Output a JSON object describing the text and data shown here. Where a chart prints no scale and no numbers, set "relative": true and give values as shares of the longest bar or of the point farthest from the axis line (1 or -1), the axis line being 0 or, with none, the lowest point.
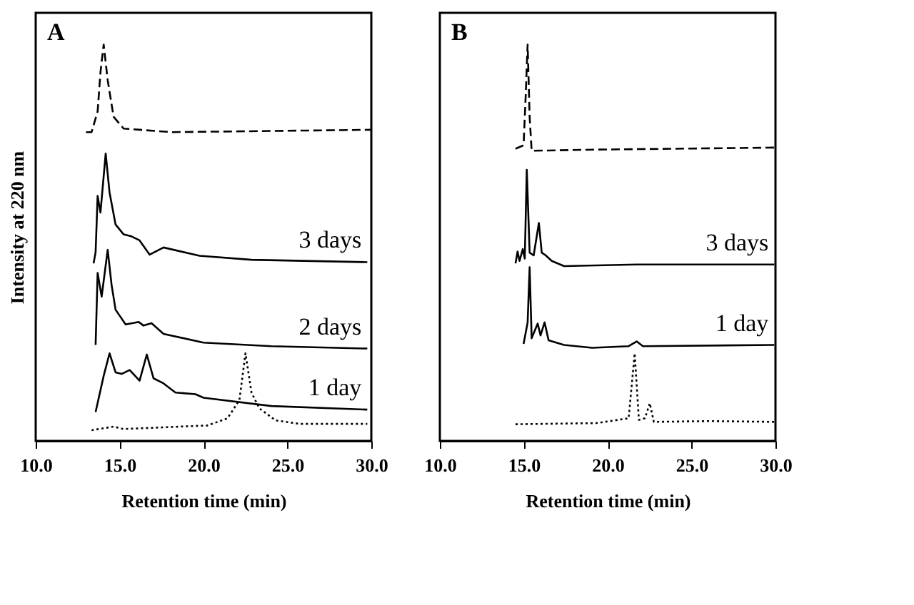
{
  "chart_data": [
    {
      "type": "line",
      "title": "A",
      "xlabel": "Retention time (min)",
      "ylabel": "Intensity at 220 nm",
      "relative": true,
      "xlim": [
        10,
        30
      ],
      "xticks": [
        {
          "value": 10,
          "label": "10.0"
        },
        {
          "value": 15,
          "label": "15.0"
        },
        {
          "value": 20,
          "label": "20.0"
        },
        {
          "value": 25,
          "label": "25.0"
        },
        {
          "value": 30,
          "label": "30.0"
        }
      ],
      "grid": false,
      "legend": false,
      "marker": "none",
      "series": [
        {
          "color": "#000000",
          "line_style": "dashed",
          "x": [
            13.0,
            13.33,
            13.69,
            13.86,
            14.05,
            14.29,
            14.64,
            15.24,
            18.1,
            30
          ],
          "values": [
            0.779,
            0.779,
            0.831,
            0.93,
            1.0,
            0.91,
            0.818,
            0.788,
            0.779,
            0.785
          ]
        },
        {
          "name": "3 days",
          "color": "#000000",
          "line_style": "solid",
          "x": [
            13.45,
            13.57,
            13.69,
            13.86,
            14.17,
            14.4,
            14.76,
            15.24,
            15.71,
            16.19,
            16.79,
            17.62,
            19.76,
            22.86,
            29.76
          ],
          "values": [
            0.448,
            0.476,
            0.618,
            0.576,
            0.725,
            0.627,
            0.546,
            0.521,
            0.516,
            0.506,
            0.47,
            0.488,
            0.467,
            0.457,
            0.451
          ]
        },
        {
          "name": "2 days",
          "color": "#000000",
          "line_style": "solid",
          "x": [
            13.57,
            13.69,
            13.93,
            14.29,
            14.52,
            14.76,
            15.36,
            16.14,
            16.43,
            16.9,
            17.62,
            20,
            24.05,
            29.76
          ],
          "values": [
            0.242,
            0.424,
            0.364,
            0.482,
            0.394,
            0.331,
            0.294,
            0.3,
            0.291,
            0.297,
            0.27,
            0.248,
            0.239,
            0.233
          ]
        },
        {
          "name": "1 day",
          "color": "#000000",
          "line_style": "solid",
          "x": [
            13.57,
            14.05,
            14.4,
            14.76,
            15.12,
            15.6,
            16.19,
            16.62,
            17.02,
            17.62,
            18.33,
            19.52,
            20,
            24.05,
            29.76
          ],
          "values": [
            0.073,
            0.164,
            0.221,
            0.173,
            0.169,
            0.179,
            0.152,
            0.218,
            0.158,
            0.145,
            0.122,
            0.118,
            0.109,
            0.088,
            0.079
          ]
        },
        {
          "color": "#000000",
          "line_style": "dotted",
          "x": [
            13.33,
            14.64,
            15.24,
            20.24,
            21.43,
            22.14,
            22.5,
            22.86,
            23.33,
            24.29,
            25.71,
            29.76
          ],
          "values": [
            0.027,
            0.036,
            0.03,
            0.039,
            0.057,
            0.103,
            0.221,
            0.122,
            0.082,
            0.052,
            0.043,
            0.043
          ]
        }
      ]
    },
    {
      "type": "line",
      "title": "B",
      "xlabel": "Retention time (min)",
      "relative": true,
      "xlim": [
        10,
        30
      ],
      "xticks": [
        {
          "value": 10,
          "label": "10.0"
        },
        {
          "value": 15,
          "label": "15.0"
        },
        {
          "value": 20,
          "label": "20.0"
        },
        {
          "value": 25,
          "label": "25.0"
        },
        {
          "value": 30,
          "label": "30.0"
        }
      ],
      "grid": false,
      "legend": false,
      "marker": "none",
      "series": [
        {
          "color": "#000000",
          "line_style": "dashed",
          "x": [
            14.51,
            14.99,
            15.11,
            15.23,
            15.35,
            15.47,
            19.33,
            29.93
          ],
          "values": [
            0.737,
            0.746,
            0.866,
            1.0,
            0.818,
            0.732,
            0.735,
            0.74
          ]
        },
        {
          "name": "3 days",
          "color": "#000000",
          "line_style": "solid",
          "x": [
            14.51,
            14.63,
            14.75,
            14.94,
            15.06,
            15.18,
            15.35,
            15.59,
            15.9,
            16.07,
            16.31,
            16.67,
            17.4,
            21.73,
            29.93
          ],
          "values": [
            0.448,
            0.478,
            0.454,
            0.484,
            0.46,
            0.684,
            0.475,
            0.468,
            0.55,
            0.475,
            0.468,
            0.454,
            0.441,
            0.445,
            0.445
          ]
        },
        {
          "name": "1 day",
          "color": "#000000",
          "line_style": "solid",
          "x": [
            14.99,
            15.23,
            15.35,
            15.47,
            15.83,
            16.0,
            16.24,
            16.48,
            17.4,
            19.08,
            21.25,
            21.73,
            22.1,
            29.93
          ],
          "values": [
            0.245,
            0.299,
            0.438,
            0.259,
            0.296,
            0.266,
            0.299,
            0.254,
            0.242,
            0.235,
            0.239,
            0.251,
            0.239,
            0.242
          ]
        },
        {
          "color": "#000000",
          "line_style": "dotted",
          "x": [
            14.51,
            19.33,
            21.25,
            21.61,
            21.86,
            22.22,
            22.51,
            22.75,
            26.07,
            29.93
          ],
          "values": [
            0.042,
            0.045,
            0.057,
            0.221,
            0.053,
            0.057,
            0.095,
            0.048,
            0.05,
            0.048
          ]
        }
      ]
    }
  ]
}
